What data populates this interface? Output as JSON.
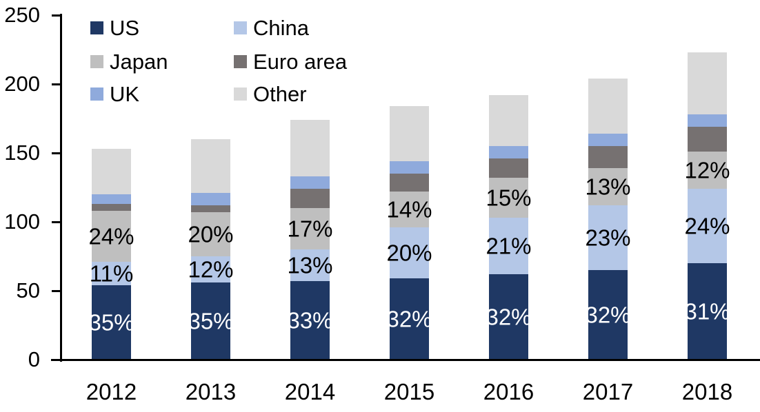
{
  "chart_data": {
    "type": "bar",
    "stacked": true,
    "categories": [
      "2012",
      "2013",
      "2014",
      "2015",
      "2016",
      "2017",
      "2018"
    ],
    "ylim": [
      0,
      250
    ],
    "yticks": [
      0,
      50,
      100,
      150,
      200,
      250
    ],
    "yticklabels": [
      "0",
      "50",
      "100",
      "150",
      "200",
      "250"
    ],
    "gridlines": false,
    "legend_position": "top-left",
    "legend_columns": 2,
    "series": [
      {
        "name": "US",
        "color": "#1F3864",
        "label_color": "#FFFFFF",
        "values": [
          54,
          56,
          57,
          59,
          62,
          65,
          70
        ],
        "pct_labels": [
          "35%",
          "35%",
          "33%",
          "32%",
          "32%",
          "32%",
          "31%"
        ]
      },
      {
        "name": "China",
        "color": "#B4C7E7",
        "label_color": "#000000",
        "values": [
          17,
          19,
          23,
          37,
          41,
          47,
          54
        ],
        "pct_labels": [
          "11%",
          "12%",
          "13%",
          "20%",
          "21%",
          "23%",
          "24%"
        ]
      },
      {
        "name": "Japan",
        "color": "#BFBFBF",
        "label_color": "#000000",
        "values": [
          37,
          32,
          30,
          26,
          29,
          27,
          27
        ],
        "pct_labels": [
          "24%",
          "20%",
          "17%",
          "14%",
          "15%",
          "13%",
          "12%"
        ]
      },
      {
        "name": "Euro area",
        "color": "#767171",
        "values": [
          5,
          5,
          14,
          13,
          14,
          16,
          18
        ],
        "pct_labels": null
      },
      {
        "name": "UK",
        "color": "#8FAADC",
        "values": [
          7,
          9,
          9,
          9,
          9,
          9,
          9
        ],
        "pct_labels": null
      },
      {
        "name": "Other",
        "color": "#D9D9D9",
        "values": [
          33,
          39,
          41,
          40,
          37,
          40,
          45
        ],
        "pct_labels": null
      }
    ]
  }
}
